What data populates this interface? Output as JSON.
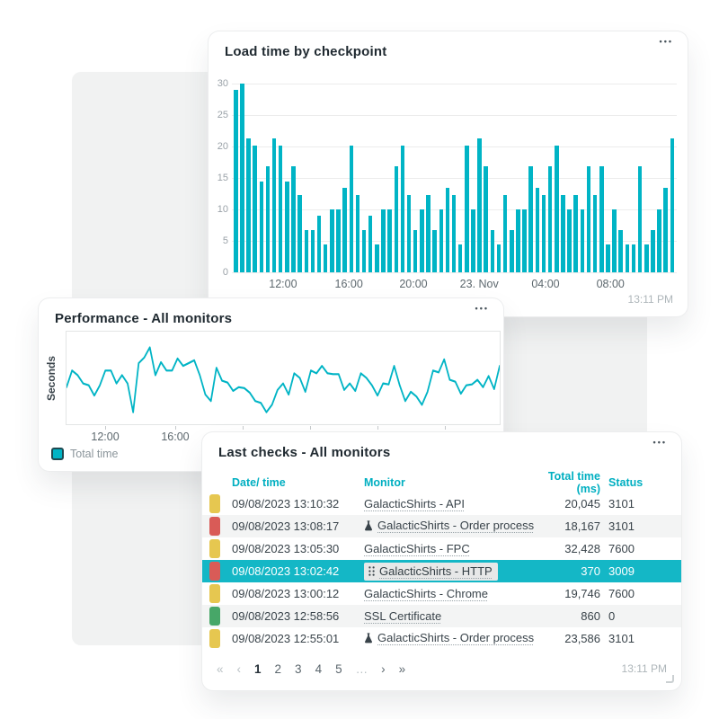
{
  "icons": {
    "more": "•••",
    "first": "«",
    "prev": "‹",
    "next": "›",
    "last": "»",
    "ellipsis": "…"
  },
  "colors": {
    "accent_teal": "#00b4c5",
    "table_header_teal": "#00afc1",
    "highlight_row": "#14b7c6",
    "severity_yellow": "#e6c750",
    "severity_red": "#d95b57",
    "severity_green": "#47a768"
  },
  "cards": {
    "load_time": {
      "timestamp": "13:11 PM"
    },
    "last_checks": {
      "timestamp": "13:11 PM"
    }
  },
  "chart_data": [
    {
      "type": "bar",
      "title": "Load time by checkpoint",
      "ylabel": "",
      "ylim": [
        0,
        30
      ],
      "y_ticks": [
        30,
        25,
        20,
        15,
        10,
        5,
        0
      ],
      "grid": true,
      "x_tick_labels": [
        "12:00",
        "16:00",
        "20:00",
        "23. Nov",
        "04:00",
        "08:00"
      ],
      "x_tick_pos_pct": [
        11.5,
        26.3,
        40.8,
        55.6,
        70.5,
        85.1
      ],
      "bar_color": "#00b4c5",
      "values": [
        29,
        30,
        21.3,
        20.1,
        14.5,
        16.8,
        21.3,
        20.1,
        14.5,
        16.8,
        12.3,
        6.7,
        6.7,
        9,
        4.5,
        10,
        10,
        13.4,
        20.1,
        12.3,
        6.7,
        9,
        4.5,
        10,
        10,
        16.8,
        20.1,
        12.3,
        6.7,
        10,
        12.3,
        6.7,
        10,
        13.4,
        12.3,
        4.5,
        20.1,
        10,
        21.3,
        16.8,
        6.7,
        4.5,
        12.3,
        6.7,
        10,
        10,
        16.8,
        13.4,
        12.3,
        16.8,
        20.1,
        12.3,
        10,
        12.3,
        10,
        16.8,
        12.3,
        16.8,
        4.5,
        10,
        6.7,
        4.5,
        4.5,
        16.8,
        4.5,
        6.7,
        10,
        13.4,
        21.3
      ]
    },
    {
      "type": "line",
      "title": "Performance - All monitors",
      "ylabel": "Seconds",
      "grid": false,
      "legend_position": "bottom-left",
      "x_tick_labels": [
        "12:00",
        "16:00"
      ],
      "x_label_pos_pct": [
        9.1,
        25.2
      ],
      "x_tick_pos_pct": [
        9.1,
        25.2,
        40.7,
        56.2,
        71.7,
        87.2
      ],
      "line_color": "#00b4c5",
      "series": [
        {
          "name": "Total time",
          "values": [
            40,
            58,
            53,
            44,
            42,
            31,
            42,
            58,
            58,
            44,
            53,
            44,
            13,
            66,
            72,
            83,
            53,
            67,
            58,
            58,
            71,
            63,
            66,
            69,
            53,
            32,
            25,
            61,
            47,
            45,
            36,
            40,
            39,
            34,
            25,
            23,
            13,
            21,
            37,
            44,
            32,
            55,
            50,
            35,
            58,
            55,
            63,
            55,
            54,
            54,
            37,
            44,
            36,
            55,
            50,
            42,
            31,
            44,
            43,
            63,
            42,
            25,
            35,
            30,
            21,
            35,
            58,
            56,
            70,
            48,
            46,
            33,
            42,
            43,
            48,
            40,
            52,
            38,
            63
          ]
        }
      ]
    },
    {
      "type": "table",
      "title": "Last checks - All monitors",
      "columns": [
        "Date/ time",
        "Monitor",
        "Total time (ms)",
        "Status"
      ],
      "rows": [
        {
          "severity": "yellow",
          "date": "09/08/2023 13:10:32",
          "monitor": "GalacticShirts - API",
          "monitor_icon": null,
          "total_ms": "20,045",
          "status": "3101",
          "highlighted": false
        },
        {
          "severity": "red",
          "date": "09/08/2023 13:08:17",
          "monitor": "GalacticShirts - Order process",
          "monitor_icon": "flask",
          "total_ms": "18,167",
          "status": "3101",
          "highlighted": false
        },
        {
          "severity": "yellow",
          "date": "09/08/2023 13:05:30",
          "monitor": "GalacticShirts - FPC",
          "monitor_icon": null,
          "total_ms": "32,428",
          "status": "7600",
          "highlighted": false
        },
        {
          "severity": "red",
          "date": "09/08/2023 13:02:42",
          "monitor": "GalacticShirts - HTTP",
          "monitor_icon": "drag",
          "total_ms": "370",
          "status": "3009",
          "highlighted": true
        },
        {
          "severity": "yellow",
          "date": "09/08/2023 13:00:12",
          "monitor": "GalacticShirts - Chrome",
          "monitor_icon": null,
          "total_ms": "19,746",
          "status": "7600",
          "highlighted": false
        },
        {
          "severity": "green",
          "date": "09/08/2023 12:58:56",
          "monitor": "SSL Certificate",
          "monitor_icon": null,
          "total_ms": "860",
          "status": "0",
          "highlighted": false
        },
        {
          "severity": "yellow",
          "date": "09/08/2023 12:55:01",
          "monitor": "GalacticShirts - Order process",
          "monitor_icon": "flask",
          "total_ms": "23,586",
          "status": "3101",
          "highlighted": false
        }
      ]
    }
  ],
  "pagination": {
    "items": [
      {
        "label": "«",
        "kind": "first-page",
        "state": "disabled"
      },
      {
        "label": "‹",
        "kind": "previous-page",
        "state": "disabled"
      },
      {
        "label": "1",
        "kind": "page",
        "state": "active"
      },
      {
        "label": "2",
        "kind": "page",
        "state": "normal"
      },
      {
        "label": "3",
        "kind": "page",
        "state": "normal"
      },
      {
        "label": "4",
        "kind": "page",
        "state": "normal"
      },
      {
        "label": "5",
        "kind": "page",
        "state": "normal"
      },
      {
        "label": "…",
        "kind": "ellipsis",
        "state": "disabled"
      },
      {
        "label": "›",
        "kind": "next-page",
        "state": "normal"
      },
      {
        "label": "»",
        "kind": "last-page",
        "state": "normal"
      }
    ]
  }
}
